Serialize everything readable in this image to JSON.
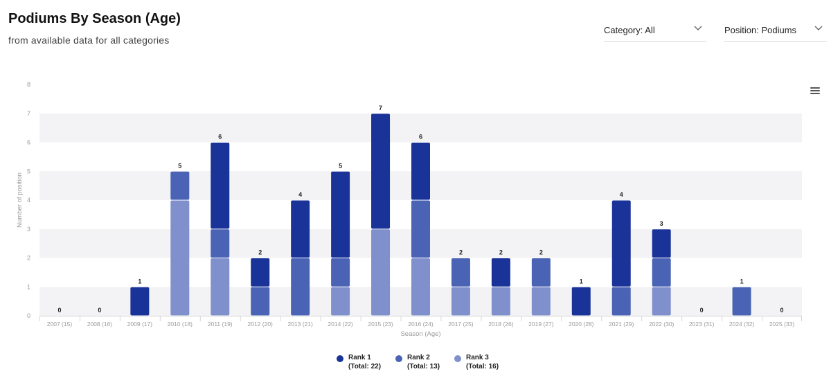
{
  "header": {
    "title": "Podiums By Season (Age)",
    "subtitle": "from available data for all categories"
  },
  "filters": {
    "category_label": "Category: All",
    "position_label": "Position: Podiums"
  },
  "menu_icon": "hamburger-menu-icon",
  "colors": {
    "rank1": "#1a3399",
    "rank2": "#4a63b5",
    "rank3": "#8090cc",
    "band": "#f3f3f5",
    "axis_text": "#9a9a9a"
  },
  "legend": [
    {
      "name": "Rank 1",
      "total": "(Total: 22)"
    },
    {
      "name": "Rank 2",
      "total": "(Total: 13)"
    },
    {
      "name": "Rank 3",
      "total": "(Total: 16)"
    }
  ],
  "chart_data": {
    "type": "bar",
    "stacked": true,
    "xlabel": "Season (Age)",
    "ylabel": "Number of position",
    "ylim": [
      0,
      8
    ],
    "yticks": [
      0,
      1,
      2,
      3,
      4,
      5,
      6,
      7,
      8
    ],
    "grid": "alternating bands",
    "legend_position": "bottom",
    "categories": [
      "2007 (15)",
      "2008 (16)",
      "2009 (17)",
      "2010 (18)",
      "2011 (19)",
      "2012 (20)",
      "2013 (21)",
      "2014 (22)",
      "2015 (23)",
      "2016 (24)",
      "2017 (25)",
      "2018 (26)",
      "2019 (27)",
      "2020 (28)",
      "2021 (29)",
      "2022 (30)",
      "2023 (31)",
      "2024 (32)",
      "2025 (33)"
    ],
    "series": [
      {
        "name": "Rank 1",
        "values": [
          0,
          0,
          1,
          0,
          3,
          1,
          2,
          3,
          4,
          2,
          0,
          1,
          0,
          1,
          3,
          1,
          0,
          0,
          0
        ]
      },
      {
        "name": "Rank 2",
        "values": [
          0,
          0,
          0,
          1,
          1,
          1,
          2,
          1,
          0,
          2,
          1,
          0,
          1,
          0,
          1,
          1,
          0,
          1,
          0
        ]
      },
      {
        "name": "Rank 3",
        "values": [
          0,
          0,
          0,
          4,
          2,
          0,
          0,
          1,
          3,
          2,
          1,
          1,
          1,
          0,
          0,
          1,
          0,
          0,
          0
        ]
      }
    ],
    "totals": [
      0,
      0,
      1,
      5,
      6,
      2,
      4,
      5,
      7,
      6,
      2,
      2,
      2,
      1,
      4,
      3,
      0,
      1,
      0
    ]
  }
}
